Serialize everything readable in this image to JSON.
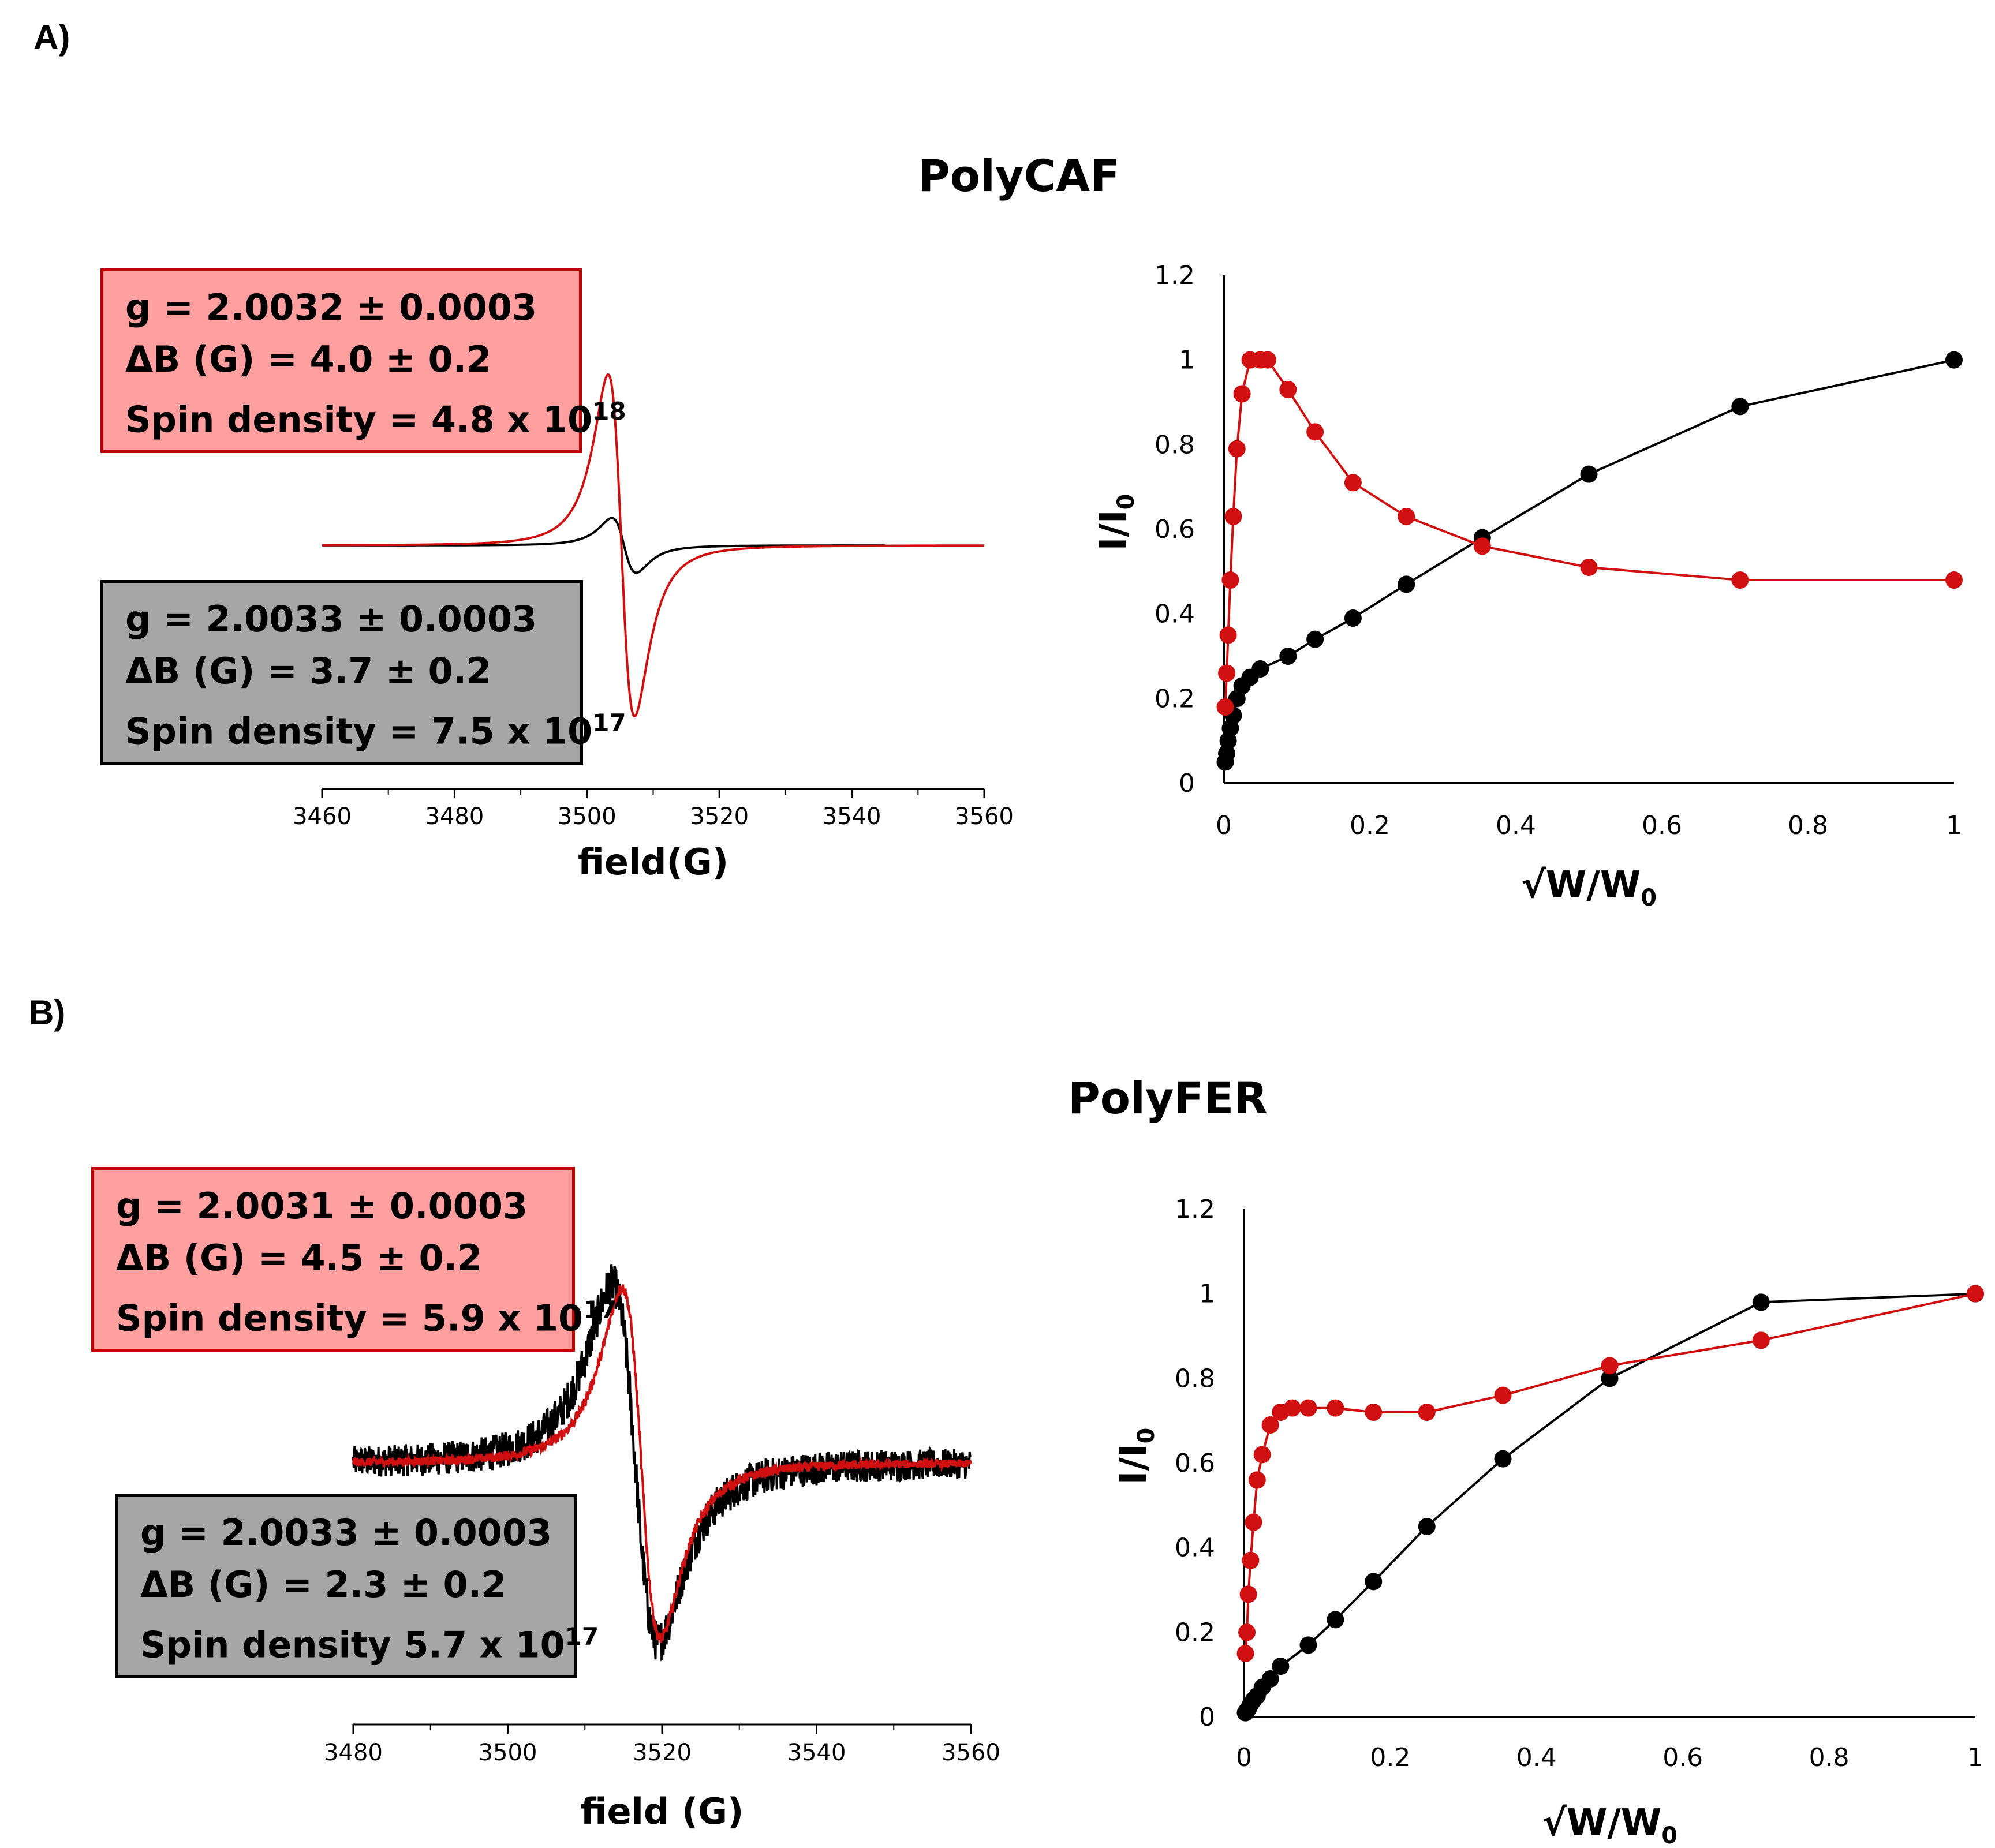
{
  "panel_a": {
    "label": "A)",
    "title": "PolyCAF",
    "box_red": {
      "g": "g = 2.0032 ± 0.0003",
      "dB": "ΔB (G) = 4.0 ± 0.2",
      "spin": "Spin density = 4.8 x 10",
      "spin_exp": "18"
    },
    "box_gray": {
      "g": "g = 2.0033 ± 0.0003",
      "dB": "ΔB (G) = 3.7 ± 0.2",
      "spin": "Spin density = 7.5 x 10",
      "spin_exp": "17"
    }
  },
  "panel_b": {
    "label": "B)",
    "title": "PolyFER",
    "box_red": {
      "g": "g = 2.0031 ± 0.0003",
      "dB": "ΔB (G) = 4.5 ± 0.2",
      "spin": "Spin density = 5.9 x 10",
      "spin_exp": "17"
    },
    "box_gray": {
      "g": "g = 2.0033 ± 0.0003",
      "dB": "ΔB (G) = 2.3 ± 0.2",
      "spin": "Spin density 5.7 x 10",
      "spin_exp": "17"
    }
  },
  "colors": {
    "red": "#d01010",
    "black": "#000000",
    "box_red": "#ff9f9f",
    "box_gray": "#a6a6a6"
  },
  "chart_data": [
    {
      "id": "epr_a",
      "type": "line",
      "title": "",
      "xlabel": "field(G)",
      "ylabel": "",
      "xlim": [
        3460,
        3560
      ],
      "xticks": [
        "3460",
        "3480",
        "3500",
        "3520",
        "3540",
        "3560"
      ],
      "series": [
        {
          "name": "red",
          "color": "#d01010",
          "x_range": [
            3460,
            3560
          ],
          "center": 3505.2,
          "amplitude": 1.0,
          "width": 2.0,
          "noise": 0
        },
        {
          "name": "black",
          "color": "#000000",
          "x_range": [
            3460,
            3545
          ],
          "center": 3505.6,
          "amplitude": 0.16,
          "width": 1.85,
          "noise": 0
        }
      ]
    },
    {
      "id": "sat_a",
      "type": "line",
      "title": "",
      "xlabel": "√W/W",
      "xlabel_sub": "0",
      "ylabel": "I/I",
      "ylabel_sub": "0",
      "xlim": [
        0,
        1
      ],
      "ylim": [
        0,
        1.2
      ],
      "xticks": [
        "0",
        "0.2",
        "0.4",
        "0.6",
        "0.8",
        "1"
      ],
      "yticks": [
        "0",
        "0.2",
        "0.4",
        "0.6",
        "0.8",
        "1",
        "1.2"
      ],
      "series": [
        {
          "name": "red",
          "color": "#d01010",
          "x": [
            0.002,
            0.004,
            0.006,
            0.009,
            0.013,
            0.018,
            0.025,
            0.036,
            0.05,
            0.06,
            0.088,
            0.125,
            0.177,
            0.25,
            0.354,
            0.5,
            0.707,
            1.0
          ],
          "y": [
            0.18,
            0.26,
            0.35,
            0.48,
            0.63,
            0.79,
            0.92,
            1.0,
            1.0,
            1.0,
            0.93,
            0.83,
            0.71,
            0.63,
            0.56,
            0.51,
            0.48,
            0.48
          ]
        },
        {
          "name": "black",
          "color": "#000000",
          "x": [
            0.002,
            0.004,
            0.006,
            0.009,
            0.013,
            0.018,
            0.025,
            0.036,
            0.05,
            0.088,
            0.125,
            0.177,
            0.25,
            0.354,
            0.5,
            0.707,
            1.0
          ],
          "y": [
            0.05,
            0.07,
            0.1,
            0.13,
            0.16,
            0.2,
            0.23,
            0.25,
            0.27,
            0.3,
            0.34,
            0.39,
            0.47,
            0.58,
            0.73,
            0.89,
            1.0
          ]
        }
      ]
    },
    {
      "id": "epr_b",
      "type": "line",
      "title": "",
      "xlabel": "field (G)",
      "ylabel": "",
      "xlim": [
        3480,
        3560
      ],
      "xticks": [
        "3480",
        "3500",
        "3520",
        "3540",
        "3560"
      ],
      "series": [
        {
          "name": "red",
          "color": "#d01010",
          "x_range": [
            3480,
            3560
          ],
          "center": 3517.3,
          "amplitude": 1.0,
          "width": 2.5,
          "noise": 0.025
        },
        {
          "name": "black",
          "color": "#000000",
          "x_range": [
            3480,
            3560
          ],
          "center": 3516.5,
          "amplitude": 1.02,
          "width": 3.0,
          "noise": 0.09
        }
      ]
    },
    {
      "id": "sat_b",
      "type": "line",
      "title": "",
      "xlabel": "√W/W",
      "xlabel_sub": "0",
      "ylabel": "I/I",
      "ylabel_sub": "0",
      "xlim": [
        0,
        1
      ],
      "ylim": [
        0,
        1.2
      ],
      "xticks": [
        "0",
        "0.2",
        "0.4",
        "0.6",
        "0.8",
        "1"
      ],
      "yticks": [
        "0",
        "0.2",
        "0.4",
        "0.6",
        "0.8",
        "1",
        "1.2"
      ],
      "series": [
        {
          "name": "red",
          "color": "#d01010",
          "x": [
            0.002,
            0.004,
            0.006,
            0.009,
            0.013,
            0.018,
            0.025,
            0.036,
            0.05,
            0.066,
            0.088,
            0.125,
            0.177,
            0.25,
            0.354,
            0.5,
            0.707,
            1.0
          ],
          "y": [
            0.15,
            0.2,
            0.29,
            0.37,
            0.46,
            0.56,
            0.62,
            0.69,
            0.72,
            0.73,
            0.73,
            0.73,
            0.72,
            0.72,
            0.76,
            0.83,
            0.89,
            1.0
          ]
        },
        {
          "name": "black",
          "color": "#000000",
          "x": [
            0.002,
            0.004,
            0.006,
            0.009,
            0.013,
            0.018,
            0.025,
            0.036,
            0.05,
            0.088,
            0.125,
            0.177,
            0.25,
            0.354,
            0.5,
            0.707,
            1.0
          ],
          "y": [
            0.01,
            0.015,
            0.02,
            0.03,
            0.04,
            0.05,
            0.07,
            0.09,
            0.12,
            0.17,
            0.23,
            0.32,
            0.45,
            0.61,
            0.8,
            0.98,
            1.0
          ]
        }
      ]
    }
  ]
}
